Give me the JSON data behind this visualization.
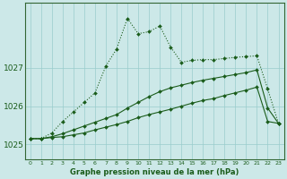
{
  "title": "Graphe pression niveau de la mer (hPa)",
  "bg_color": "#cce8e8",
  "plot_bg_color": "#cce8e8",
  "grid_color": "#99cccc",
  "line_color": "#1a5c1a",
  "x_labels": [
    "0",
    "1",
    "2",
    "3",
    "4",
    "5",
    "6",
    "7",
    "8",
    "9",
    "10",
    "11",
    "12",
    "13",
    "14",
    "15",
    "16",
    "17",
    "18",
    "19",
    "20",
    "21",
    "22",
    "23"
  ],
  "ylim": [
    1024.6,
    1028.7
  ],
  "yticks": [
    1025,
    1026,
    1027
  ],
  "line1": [
    1025.15,
    1025.15,
    1025.18,
    1025.2,
    1025.25,
    1025.3,
    1025.38,
    1025.45,
    1025.52,
    1025.6,
    1025.7,
    1025.78,
    1025.85,
    1025.92,
    1026.0,
    1026.08,
    1026.15,
    1026.2,
    1026.28,
    1026.35,
    1026.42,
    1026.5,
    1025.6,
    1025.55
  ],
  "line2": [
    1025.15,
    1025.15,
    1025.2,
    1025.28,
    1025.38,
    1025.48,
    1025.58,
    1025.68,
    1025.78,
    1025.95,
    1026.1,
    1026.25,
    1026.38,
    1026.48,
    1026.55,
    1026.62,
    1026.68,
    1026.73,
    1026.78,
    1026.83,
    1026.88,
    1026.95,
    1025.95,
    1025.55
  ],
  "line3": [
    1025.15,
    1025.15,
    1025.3,
    1025.6,
    1025.85,
    1026.1,
    1026.35,
    1027.05,
    1027.5,
    1028.3,
    1027.9,
    1027.95,
    1028.1,
    1027.55,
    1027.15,
    1027.2,
    1027.22,
    1027.22,
    1027.25,
    1027.28,
    1027.3,
    1027.32,
    1026.45,
    1025.55
  ]
}
